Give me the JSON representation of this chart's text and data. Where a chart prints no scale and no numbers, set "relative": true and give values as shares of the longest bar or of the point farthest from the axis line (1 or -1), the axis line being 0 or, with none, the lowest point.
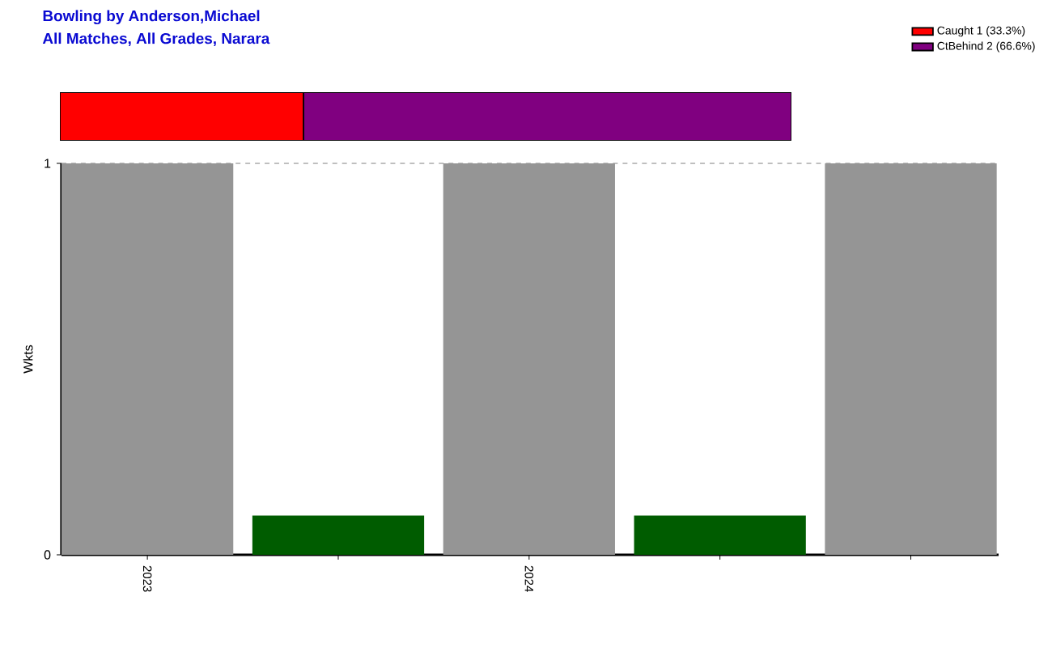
{
  "chart_data": [
    {
      "type": "bar",
      "title": "Bowling by Anderson,Michael",
      "subtitle": "All Matches, All Grades, Narara",
      "orientation": "horizontal",
      "stacked": true,
      "relative": true,
      "legend": "top right",
      "series": [
        {
          "name": "Caught 1 (33.3%)",
          "color": "#ff0000",
          "values": [
            0.333
          ]
        },
        {
          "name": "CtBehind 2 (66.6%)",
          "color": "#800080",
          "values": [
            0.667
          ]
        }
      ]
    },
    {
      "type": "bar",
      "ylabel": "Wkts",
      "categories": [
        "2023",
        null,
        "2024",
        null,
        null
      ],
      "values": [
        1,
        0.1,
        1,
        0.1,
        1
      ],
      "colors": [
        "#959595",
        "#005c00",
        "#959595",
        "#005c00",
        "#959595"
      ],
      "ylim": [
        0,
        1
      ],
      "yticks": [
        0,
        1
      ],
      "grid": "y"
    }
  ]
}
